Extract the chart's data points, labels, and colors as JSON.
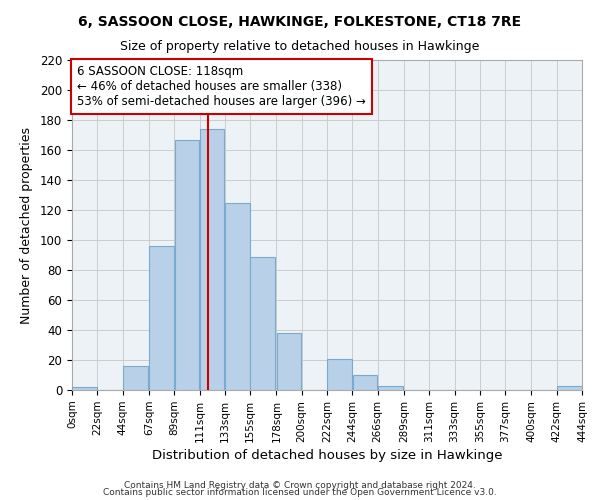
{
  "title": "6, SASSOON CLOSE, HAWKINGE, FOLKESTONE, CT18 7RE",
  "subtitle": "Size of property relative to detached houses in Hawkinge",
  "xlabel": "Distribution of detached houses by size in Hawkinge",
  "ylabel": "Number of detached properties",
  "bar_color": "#b8d0e8",
  "bar_edge_color": "#7aaacf",
  "bins_left": [
    0,
    22,
    44,
    67,
    89,
    111,
    133,
    155,
    178,
    200,
    222,
    244,
    266,
    289,
    311,
    333,
    355,
    377,
    400,
    422
  ],
  "bin_width": 22,
  "heights": [
    2,
    0,
    16,
    96,
    167,
    174,
    125,
    89,
    38,
    0,
    21,
    10,
    3,
    0,
    0,
    0,
    0,
    0,
    0,
    3
  ],
  "xlim_left": 0,
  "xlim_right": 444,
  "ylim_top": 220,
  "ylim_bottom": 0,
  "xtick_positions": [
    0,
    22,
    44,
    67,
    89,
    111,
    133,
    155,
    178,
    200,
    222,
    244,
    266,
    289,
    311,
    333,
    355,
    377,
    400,
    422,
    444
  ],
  "xtick_labels": [
    "0sqm",
    "22sqm",
    "44sqm",
    "67sqm",
    "89sqm",
    "111sqm",
    "133sqm",
    "155sqm",
    "178sqm",
    "200sqm",
    "222sqm",
    "244sqm",
    "266sqm",
    "289sqm",
    "311sqm",
    "333sqm",
    "355sqm",
    "377sqm",
    "400sqm",
    "422sqm",
    "444sqm"
  ],
  "vline_x": 118,
  "vline_color": "#cc0000",
  "annotation_title": "6 SASSOON CLOSE: 118sqm",
  "annotation_line1": "← 46% of detached houses are smaller (338)",
  "annotation_line2": "53% of semi-detached houses are larger (396) →",
  "footer1": "Contains HM Land Registry data © Crown copyright and database right 2024.",
  "footer2": "Contains public sector information licensed under the Open Government Licence v3.0.",
  "yticks": [
    0,
    20,
    40,
    60,
    80,
    100,
    120,
    140,
    160,
    180,
    200,
    220
  ],
  "grid_color": "#cccccc",
  "background_color": "#edf2f7"
}
